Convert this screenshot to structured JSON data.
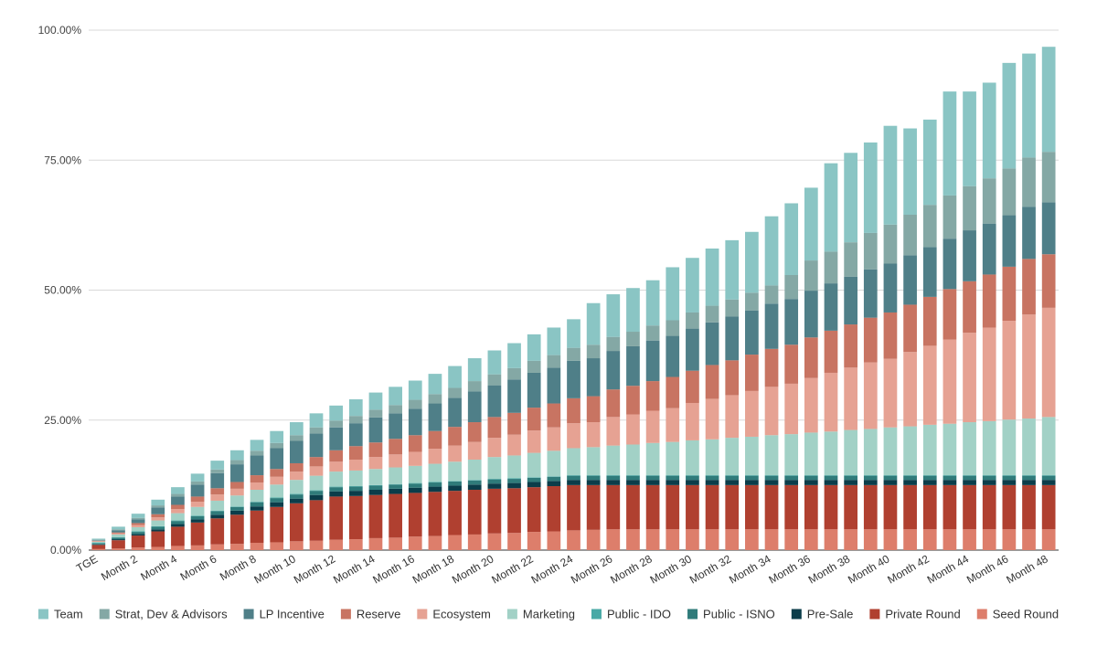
{
  "chart_data": {
    "type": "bar",
    "stacked": true,
    "title": "",
    "xlabel": "",
    "ylabel": "",
    "ylim": [
      0,
      100
    ],
    "y_ticks": [
      "0.00%",
      "25.00%",
      "50.00%",
      "75.00%",
      "100.00%"
    ],
    "y_tick_values": [
      0,
      25,
      50,
      75,
      100
    ],
    "categories": [
      "TGE",
      "Month 1",
      "Month 2",
      "Month 3",
      "Month 4",
      "Month 5",
      "Month 6",
      "Month 7",
      "Month 8",
      "Month 9",
      "Month 10",
      "Month 11",
      "Month 12",
      "Month 13",
      "Month 14",
      "Month 15",
      "Month 16",
      "Month 17",
      "Month 18",
      "Month 19",
      "Month 20",
      "Month 21",
      "Month 22",
      "Month 23",
      "Month 24",
      "Month 25",
      "Month 26",
      "Month 27",
      "Month 28",
      "Month 29",
      "Month 30",
      "Month 31",
      "Month 32",
      "Month 33",
      "Month 34",
      "Month 35",
      "Month 36",
      "Month 37",
      "Month 38",
      "Month 39",
      "Month 40",
      "Month 41",
      "Month 42",
      "Month 43",
      "Month 44",
      "Month 45",
      "Month 46",
      "Month 47",
      "Month 48"
    ],
    "visible_x_ticks": [
      "TGE",
      "Month 2",
      "Month 4",
      "Month 6",
      "Month 8",
      "Month 10",
      "Month 12",
      "Month 14",
      "Month 16",
      "Month 18",
      "Month 20",
      "Month 22",
      "Month 24",
      "Month 26",
      "Month 28",
      "Month 30",
      "Month 32",
      "Month 34",
      "Month 36",
      "Month 38",
      "Month 40",
      "Month 42",
      "Month 44",
      "Month 46",
      "Month 48"
    ],
    "legend_position": "bottom",
    "legend": [
      "Team",
      "Strat, Dev & Advisors",
      "LP Incentive",
      "Reserve",
      "Ecosystem",
      "Marketing",
      "Public - IDO",
      "Public - ISNO",
      "Pre-Sale",
      "Private Round",
      "Seed Round"
    ],
    "series": [
      {
        "name": "Seed Round",
        "color": "#dd7e6b",
        "values": [
          0.2,
          0.3,
          0.5,
          0.6,
          0.8,
          0.9,
          1.1,
          1.2,
          1.4,
          1.5,
          1.7,
          1.8,
          2.0,
          2.1,
          2.3,
          2.4,
          2.6,
          2.7,
          2.9,
          3.0,
          3.2,
          3.3,
          3.5,
          3.6,
          3.8,
          3.9,
          4.0,
          4.0,
          4.0,
          4.0,
          4.0,
          4.0,
          4.0,
          4.0,
          4.0,
          4.0,
          4.0,
          4.0,
          4.0,
          4.0,
          4.0,
          4.0,
          4.0,
          4.0,
          4.0,
          4.0,
          4.0,
          4.0,
          4.0
        ]
      },
      {
        "name": "Private Round",
        "color": "#b04030",
        "values": [
          0.8,
          1.6,
          2.3,
          3.0,
          3.7,
          4.4,
          5.0,
          5.6,
          6.2,
          6.8,
          7.3,
          7.8,
          8.3,
          8.3,
          8.3,
          8.4,
          8.4,
          8.5,
          8.5,
          8.6,
          8.6,
          8.6,
          8.6,
          8.7,
          8.7,
          8.6,
          8.5,
          8.5,
          8.5,
          8.5,
          8.5,
          8.5,
          8.5,
          8.5,
          8.5,
          8.5,
          8.5,
          8.5,
          8.5,
          8.5,
          8.5,
          8.5,
          8.5,
          8.5,
          8.5,
          8.5,
          8.5,
          8.5,
          8.5
        ]
      },
      {
        "name": "Pre-Sale",
        "color": "#0b3d4a",
        "values": [
          0.1,
          0.2,
          0.3,
          0.4,
          0.5,
          0.6,
          0.7,
          0.8,
          0.8,
          0.9,
          0.9,
          1.0,
          1.0,
          1.0,
          1.0,
          1.0,
          1.0,
          1.0,
          1.0,
          1.0,
          1.0,
          1.0,
          1.0,
          1.0,
          1.0,
          1.0,
          1.0,
          1.0,
          1.0,
          1.0,
          1.0,
          1.0,
          1.0,
          1.0,
          1.0,
          1.0,
          1.0,
          1.0,
          1.0,
          1.0,
          1.0,
          1.0,
          1.0,
          1.0,
          1.0,
          1.0,
          1.0,
          1.0,
          1.0
        ]
      },
      {
        "name": "Public - ISNO",
        "color": "#2f7b7a",
        "values": [
          0.2,
          0.3,
          0.4,
          0.5,
          0.6,
          0.6,
          0.7,
          0.7,
          0.8,
          0.8,
          0.8,
          0.8,
          0.8,
          0.8,
          0.8,
          0.8,
          0.8,
          0.8,
          0.8,
          0.8,
          0.8,
          0.8,
          0.8,
          0.8,
          0.8,
          0.8,
          0.8,
          0.8,
          0.8,
          0.8,
          0.8,
          0.8,
          0.8,
          0.8,
          0.8,
          0.8,
          0.8,
          0.8,
          0.8,
          0.8,
          0.8,
          0.8,
          0.8,
          0.8,
          0.8,
          0.8,
          0.8,
          0.8,
          0.8
        ]
      },
      {
        "name": "Public - IDO",
        "color": "#48a9a6",
        "values": [
          0.1,
          0.1,
          0.1,
          0.1,
          0.1,
          0.1,
          0.1,
          0.1,
          0.1,
          0.1,
          0.1,
          0.1,
          0.1,
          0.1,
          0.1,
          0.1,
          0.1,
          0.1,
          0.1,
          0.1,
          0.1,
          0.1,
          0.1,
          0.1,
          0.1,
          0.1,
          0.1,
          0.1,
          0.1,
          0.1,
          0.1,
          0.1,
          0.1,
          0.1,
          0.1,
          0.1,
          0.1,
          0.1,
          0.1,
          0.1,
          0.1,
          0.1,
          0.1,
          0.1,
          0.1,
          0.1,
          0.1,
          0.1,
          0.1
        ]
      },
      {
        "name": "Marketing",
        "color": "#a2d1c6",
        "values": [
          0.2,
          0.5,
          0.8,
          1.1,
          1.4,
          1.7,
          1.9,
          2.1,
          2.3,
          2.5,
          2.7,
          2.8,
          2.9,
          3.0,
          3.1,
          3.2,
          3.3,
          3.5,
          3.7,
          3.9,
          4.2,
          4.4,
          4.7,
          4.9,
          5.2,
          5.4,
          5.7,
          5.9,
          6.2,
          6.4,
          6.7,
          6.9,
          7.2,
          7.4,
          7.7,
          7.9,
          8.2,
          8.4,
          8.7,
          8.9,
          9.2,
          9.4,
          9.7,
          9.9,
          10.2,
          10.4,
          10.7,
          10.9,
          11.2
        ]
      },
      {
        "name": "Ecosystem",
        "color": "#e6a293",
        "values": [
          0.1,
          0.2,
          0.4,
          0.6,
          0.8,
          1.0,
          1.2,
          1.3,
          1.4,
          1.5,
          1.6,
          1.8,
          1.9,
          2.1,
          2.3,
          2.5,
          2.7,
          2.9,
          3.1,
          3.4,
          3.7,
          4.0,
          4.3,
          4.5,
          4.8,
          4.8,
          5.5,
          5.8,
          6.2,
          6.5,
          7.2,
          7.8,
          8.2,
          8.8,
          9.3,
          9.7,
          10.5,
          11.3,
          12.0,
          12.8,
          13.2,
          14.3,
          15.2,
          16.2,
          17.2,
          18.0,
          19.0,
          20.0,
          21.0
        ]
      },
      {
        "name": "Reserve",
        "color": "#c87462",
        "values": [
          0.1,
          0.2,
          0.4,
          0.6,
          0.8,
          1.0,
          1.2,
          1.3,
          1.4,
          1.5,
          1.6,
          1.8,
          2.2,
          2.6,
          2.8,
          3.0,
          3.2,
          3.4,
          3.6,
          3.8,
          4.0,
          4.2,
          4.4,
          4.6,
          4.8,
          5.0,
          5.3,
          5.5,
          5.7,
          6.0,
          6.2,
          6.5,
          6.7,
          7.0,
          7.3,
          7.5,
          7.8,
          8.1,
          8.3,
          8.6,
          8.9,
          9.1,
          9.4,
          9.7,
          9.9,
          10.2,
          10.4,
          10.7,
          10.3
        ]
      },
      {
        "name": "LP Incentive",
        "color": "#4f7f88",
        "values": [
          0.1,
          0.4,
          0.7,
          1.3,
          1.6,
          2.3,
          2.9,
          3.4,
          3.8,
          4.0,
          4.3,
          4.5,
          4.4,
          4.4,
          4.8,
          4.9,
          5.1,
          5.3,
          5.6,
          5.9,
          6.1,
          6.4,
          6.7,
          6.9,
          7.2,
          7.3,
          7.4,
          7.6,
          7.8,
          7.9,
          8.1,
          8.2,
          8.4,
          8.5,
          8.7,
          8.8,
          9.0,
          9.1,
          9.2,
          9.3,
          9.4,
          9.5,
          9.6,
          9.7,
          9.8,
          9.8,
          9.9,
          10.0,
          10.0
        ]
      },
      {
        "name": "Strat, Dev & Advisors",
        "color": "#84a8a5",
        "values": [
          0.1,
          0.2,
          0.3,
          0.4,
          0.5,
          0.6,
          0.7,
          0.8,
          0.9,
          1.0,
          1.1,
          1.2,
          1.3,
          1.4,
          1.5,
          1.6,
          1.7,
          1.8,
          1.9,
          2.0,
          2.1,
          2.2,
          2.3,
          2.4,
          2.5,
          2.6,
          2.7,
          2.8,
          2.9,
          3.0,
          3.1,
          3.2,
          3.3,
          3.4,
          3.5,
          4.6,
          5.8,
          6.1,
          6.6,
          7.0,
          7.5,
          7.8,
          8.1,
          8.3,
          8.5,
          8.7,
          9.0,
          9.5,
          9.7
        ]
      },
      {
        "name": "Team",
        "color": "#8ac5c4",
        "values": [
          0.2,
          0.5,
          0.8,
          1.1,
          1.3,
          1.5,
          1.7,
          1.9,
          2.1,
          2.3,
          2.5,
          2.7,
          2.9,
          3.2,
          3.3,
          3.5,
          3.7,
          3.9,
          4.2,
          4.4,
          4.6,
          4.8,
          5.1,
          5.3,
          5.5,
          8.0,
          8.2,
          8.4,
          8.7,
          10.2,
          10.5,
          11.0,
          11.4,
          11.7,
          13.3,
          13.8,
          14.0,
          17.0,
          17.2,
          17.4,
          19.0,
          16.6,
          16.4,
          20.0,
          18.2,
          18.4,
          20.3,
          20.0,
          20.2
        ]
      }
    ]
  }
}
